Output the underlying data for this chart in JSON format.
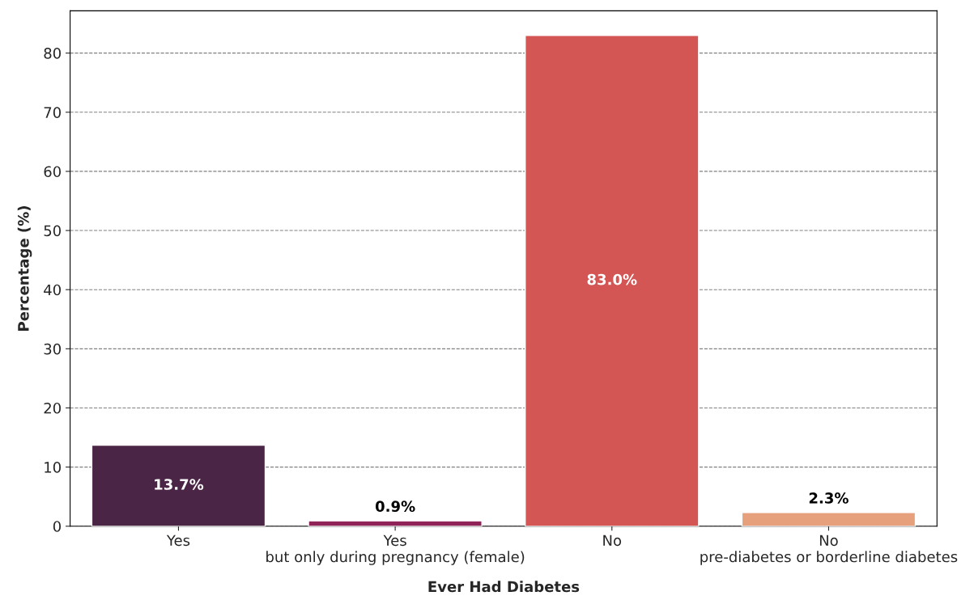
{
  "chart_data": {
    "type": "bar",
    "xlabel": "Ever Had Diabetes",
    "ylabel": "Percentage (%)",
    "categories": [
      "Yes",
      "Yes\nbut only during pregnancy (female)",
      "No",
      "No\npre-diabetes or borderline diabetes"
    ],
    "values": [
      13.7,
      0.9,
      83.0,
      2.3
    ],
    "colors": [
      "#4a2545",
      "#8f2357",
      "#d35654",
      "#e7a07c"
    ],
    "value_labels": [
      "13.7%",
      "0.9%",
      "83.0%",
      "2.3%"
    ],
    "ylim": [
      0,
      87.15
    ],
    "yticks": [
      0,
      10,
      20,
      30,
      40,
      50,
      60,
      70,
      80
    ],
    "grid": "y",
    "legend": false
  }
}
